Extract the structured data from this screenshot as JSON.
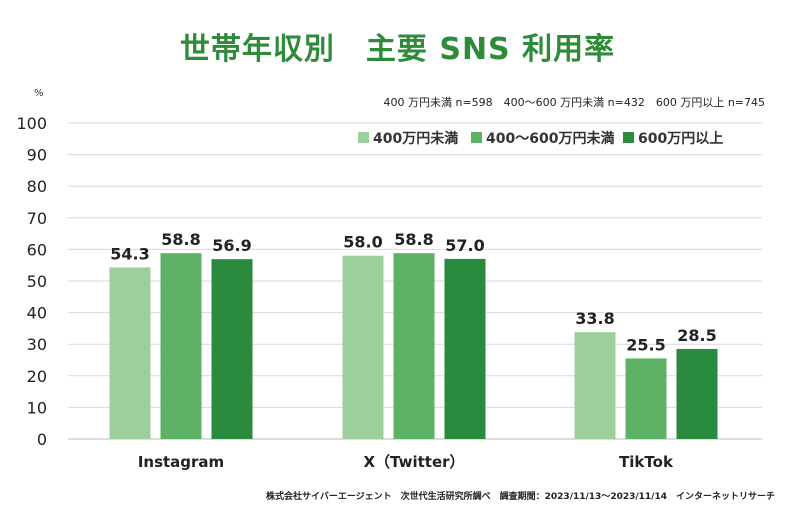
{
  "title": "世帯年収別　主要 SNS 利用率",
  "unit_label": "%",
  "sample_note": "400 万円未満 n=598　400〜600 万円未満 n=432　600 万円以上 n=745",
  "source_note": "株式会社サイバーエージェント　次世代生活研究所調べ　調査期間：2023/11/13〜2023/11/14　インターネットリサーチ",
  "colors": {
    "light": "#9ccf9c",
    "mid": "#5cb165",
    "dark": "#2a8a3e",
    "title": "#2e8b3a",
    "grid": "#d9d9d9"
  },
  "chart_data": {
    "type": "bar",
    "categories": [
      "Instagram",
      "X（Twitter）",
      "TikTok"
    ],
    "series": [
      {
        "name": "400万円未満",
        "values": [
          54.3,
          58.0,
          33.8
        ]
      },
      {
        "name": "400〜600万円未満",
        "values": [
          58.8,
          58.8,
          25.5
        ]
      },
      {
        "name": "600万円以上",
        "values": [
          56.9,
          57.0,
          28.5
        ]
      }
    ],
    "ylim": [
      0,
      100
    ],
    "yticks": [
      0,
      10,
      20,
      30,
      40,
      50,
      60,
      70,
      80,
      90,
      100
    ],
    "grid": true,
    "legend_position": "top-right"
  }
}
